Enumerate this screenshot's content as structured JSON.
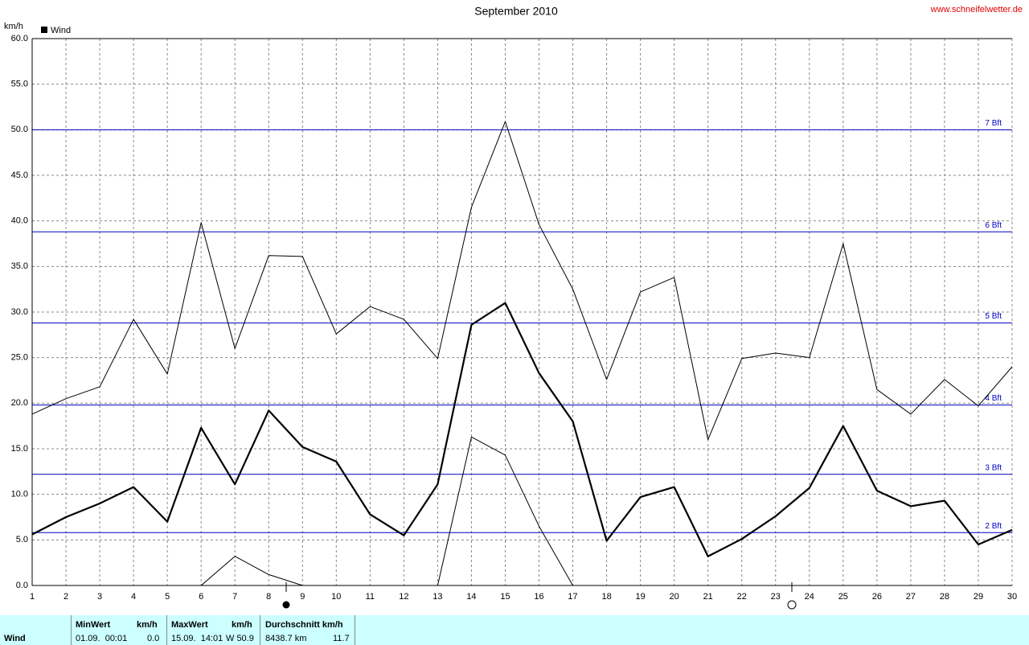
{
  "chart_data": {
    "type": "line",
    "title": "September 2010",
    "source": "www.schneifelwetter.de",
    "y_unit": "km/h",
    "legend": "Wind",
    "x": [
      1,
      2,
      3,
      4,
      5,
      6,
      7,
      8,
      9,
      10,
      11,
      12,
      13,
      14,
      15,
      16,
      17,
      18,
      19,
      20,
      21,
      22,
      23,
      24,
      25,
      26,
      27,
      28,
      29,
      30
    ],
    "series": [
      {
        "color": "#000000",
        "width": 1,
        "values": [
          18.8,
          20.5,
          21.8,
          29.2,
          23.2,
          39.8,
          26.0,
          36.2,
          36.1,
          27.6,
          30.6,
          29.2,
          24.9,
          41.5,
          50.9,
          39.6,
          32.5,
          22.6,
          32.2,
          33.8,
          16.0,
          24.9,
          25.5,
          25.0,
          37.5,
          21.5,
          18.8,
          22.6,
          19.7,
          24.0
        ]
      },
      {
        "color": "#000000",
        "width": 2.2,
        "values": [
          5.6,
          7.5,
          9.0,
          10.8,
          7.0,
          17.3,
          11.1,
          19.2,
          15.2,
          13.6,
          7.8,
          5.5,
          11.1,
          28.6,
          31.0,
          23.3,
          18.0,
          4.9,
          9.7,
          10.8,
          3.2,
          5.1,
          7.6,
          10.7,
          17.5,
          10.4,
          8.7,
          9.3,
          4.5,
          6.1
        ]
      },
      {
        "color": "#000000",
        "width": 1,
        "values": [
          0,
          0,
          0,
          0,
          0,
          0,
          3.2,
          1.2,
          0,
          0,
          0,
          0,
          0,
          16.3,
          14.3,
          6.5,
          0,
          0,
          0,
          0,
          0,
          0,
          0,
          0,
          0,
          0,
          0,
          0,
          0,
          0
        ]
      }
    ],
    "reference_lines": [
      {
        "value": 5.8,
        "label": "2 Bft"
      },
      {
        "value": 12.2,
        "label": "3 Bft"
      },
      {
        "value": 19.8,
        "label": "4 Bft"
      },
      {
        "value": 28.8,
        "label": "5 Bft"
      },
      {
        "value": 38.8,
        "label": "6 Bft"
      },
      {
        "value": 50.0,
        "label": "7 Bft"
      }
    ],
    "reference_color": "#0000c0",
    "xlim": [
      1,
      30
    ],
    "xticks": [
      1,
      2,
      3,
      4,
      5,
      6,
      7,
      8,
      9,
      10,
      11,
      12,
      13,
      14,
      15,
      16,
      17,
      18,
      19,
      20,
      21,
      22,
      23,
      24,
      25,
      26,
      27,
      28,
      29,
      30
    ],
    "ylim": [
      0,
      60
    ],
    "yticks": [
      {
        "value": 0,
        "label": "0.0"
      },
      {
        "value": 5,
        "label": "5.0"
      },
      {
        "value": 10,
        "label": "10.0"
      },
      {
        "value": 15,
        "label": "15.0"
      },
      {
        "value": 20,
        "label": "20.0"
      },
      {
        "value": 25,
        "label": "25.0"
      },
      {
        "value": 30,
        "label": "30.0"
      },
      {
        "value": 35,
        "label": "35.0"
      },
      {
        "value": 40,
        "label": "40.0"
      },
      {
        "value": 45,
        "label": "45.0"
      },
      {
        "value": 50,
        "label": "50.0"
      },
      {
        "value": 55,
        "label": "55.0"
      },
      {
        "value": 60,
        "label": "60.0"
      }
    ],
    "grid": true
  },
  "stats": {
    "row_label": "Wind",
    "min": {
      "header": "MinWert",
      "unit": "km/h",
      "date": "01.09.  00:01",
      "value": "0.0"
    },
    "max": {
      "header": "MaxWert",
      "unit": "km/h",
      "date": "15.09.  14:01",
      "value": "W 50.9"
    },
    "avg": {
      "header": "Durchschnitt km/h",
      "distance": "8438.7 km",
      "value": "11.7"
    }
  }
}
